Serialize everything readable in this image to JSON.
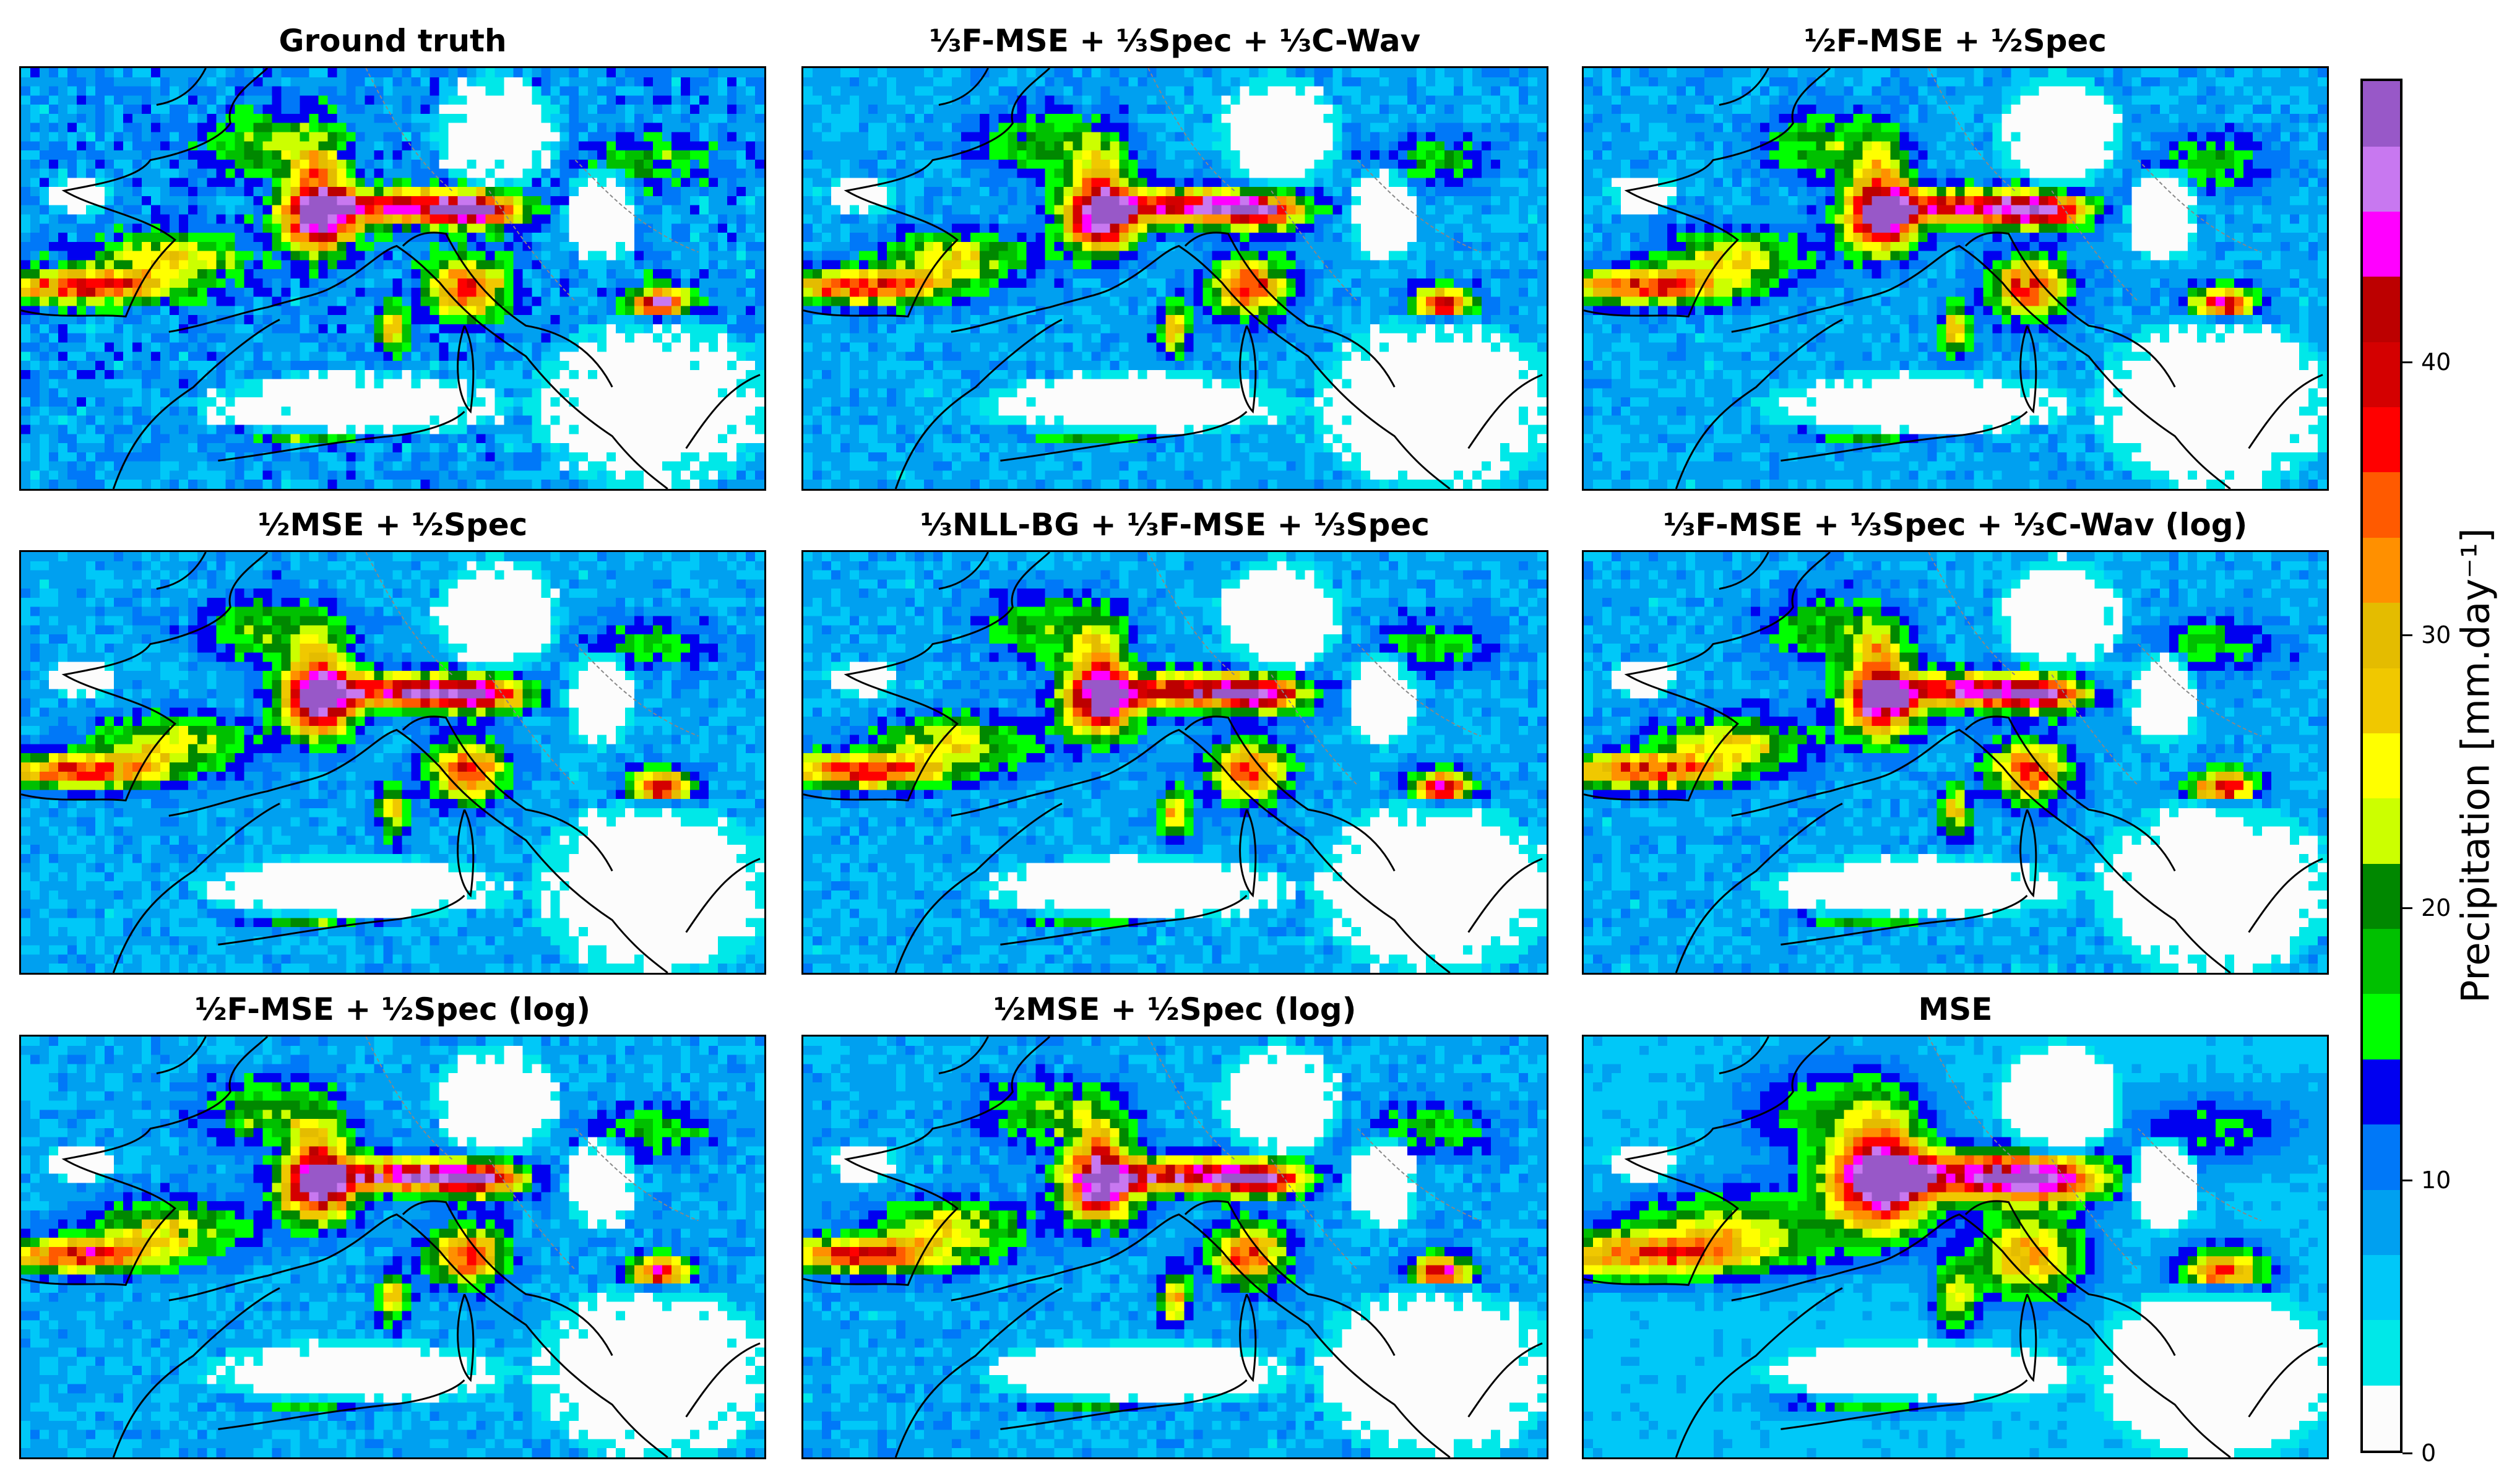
{
  "chart_data": {
    "type": "heatmap",
    "description_units": "mm.day^-1",
    "panels": [
      {
        "title": "Ground truth"
      },
      {
        "title": "⅓F-MSE + ⅓Spec + ⅓C-Wav"
      },
      {
        "title": "½F-MSE + ½Spec"
      },
      {
        "title": "½MSE + ½Spec"
      },
      {
        "title": "⅓NLL-BG + ⅓F-MSE + ⅓Spec"
      },
      {
        "title": "⅓F-MSE + ⅓Spec + ⅓C-Wav (log)"
      },
      {
        "title": "½F-MSE + ½Spec (log)"
      },
      {
        "title": "½MSE + ½Spec (log)"
      },
      {
        "title": "MSE"
      }
    ],
    "colorbar": {
      "label": "Precipitation [mm.day⁻¹]",
      "range": [
        0,
        48
      ],
      "ticks": [
        "0",
        "10",
        "20",
        "30",
        "40"
      ],
      "tick_values": [
        0,
        10,
        20,
        30,
        40
      ],
      "bin_width": 2.4,
      "colors": [
        "#fcfcfc",
        "#00e8e8",
        "#00c8f8",
        "#00a0f0",
        "#0078f8",
        "#0000f0",
        "#00ff00",
        "#00c000",
        "#008800",
        "#ccff00",
        "#ffff00",
        "#f0c800",
        "#e4bc00",
        "#ff9000",
        "#ff5a00",
        "#ff0000",
        "#d40000",
        "#bc0000",
        "#ff00ff",
        "#c878f0",
        "#9858c8"
      ]
    }
  }
}
